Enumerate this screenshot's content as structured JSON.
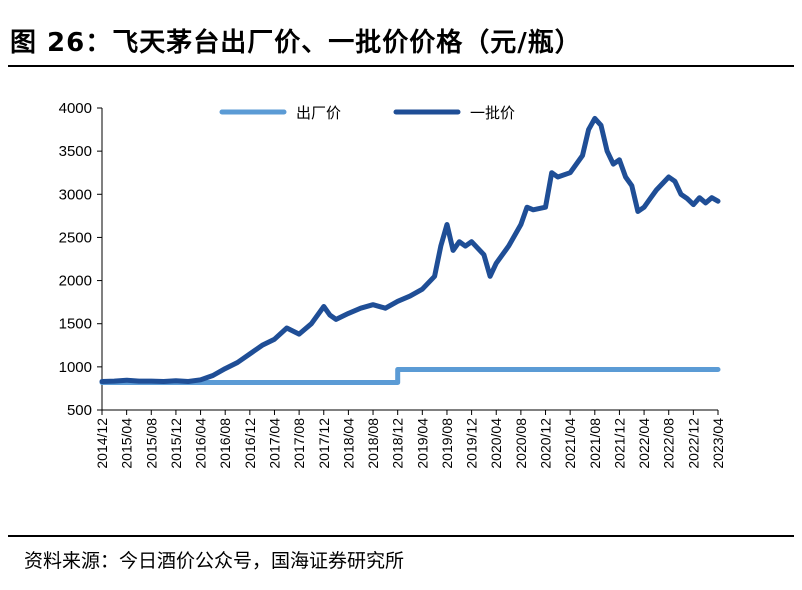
{
  "header": {
    "title": "图 26：飞天茅台出厂价、一批价价格（元/瓶）"
  },
  "footer": {
    "source": "资料来源：今日酒价公众号，国海证券研究所"
  },
  "chart_data": {
    "type": "line",
    "title": "",
    "xlabel": "",
    "ylabel": "",
    "ylim": [
      500,
      4000
    ],
    "yticks": [
      500,
      1000,
      1500,
      2000,
      2500,
      3000,
      3500,
      4000
    ],
    "x_tick_labels": [
      "2014/12",
      "2015/04",
      "2015/08",
      "2015/12",
      "2016/04",
      "2016/08",
      "2016/12",
      "2017/04",
      "2017/08",
      "2017/12",
      "2018/04",
      "2018/08",
      "2018/12",
      "2019/04",
      "2019/08",
      "2019/12",
      "2020/04",
      "2020/08",
      "2020/12",
      "2021/04",
      "2021/08",
      "2021/12",
      "2022/04",
      "2022/08",
      "2022/12",
      "2023/04"
    ],
    "legend_position": "top",
    "grid": false,
    "series": [
      {
        "name": "出厂价",
        "color": "#5b9bd5",
        "points": [
          [
            "2014/12",
            819
          ],
          [
            "2018/12",
            819
          ],
          [
            "2018/12",
            969
          ],
          [
            "2023/04",
            969
          ]
        ]
      },
      {
        "name": "一批价",
        "color": "#1f4e96",
        "points": [
          [
            "2014/12",
            830
          ],
          [
            "2015/02",
            835
          ],
          [
            "2015/04",
            845
          ],
          [
            "2015/06",
            835
          ],
          [
            "2015/08",
            835
          ],
          [
            "2015/10",
            830
          ],
          [
            "2015/12",
            840
          ],
          [
            "2016/02",
            830
          ],
          [
            "2016/04",
            850
          ],
          [
            "2016/06",
            900
          ],
          [
            "2016/08",
            980
          ],
          [
            "2016/10",
            1050
          ],
          [
            "2016/12",
            1150
          ],
          [
            "2017/02",
            1250
          ],
          [
            "2017/04",
            1320
          ],
          [
            "2017/06",
            1450
          ],
          [
            "2017/08",
            1380
          ],
          [
            "2017/10",
            1500
          ],
          [
            "2017/12",
            1700
          ],
          [
            "2018/01",
            1600
          ],
          [
            "2018/02",
            1550
          ],
          [
            "2018/04",
            1620
          ],
          [
            "2018/06",
            1680
          ],
          [
            "2018/08",
            1720
          ],
          [
            "2018/10",
            1680
          ],
          [
            "2018/12",
            1760
          ],
          [
            "2019/02",
            1820
          ],
          [
            "2019/04",
            1900
          ],
          [
            "2019/06",
            2050
          ],
          [
            "2019/07",
            2400
          ],
          [
            "2019/08",
            2650
          ],
          [
            "2019/09",
            2350
          ],
          [
            "2019/10",
            2450
          ],
          [
            "2019/11",
            2400
          ],
          [
            "2019/12",
            2450
          ],
          [
            "2020/02",
            2300
          ],
          [
            "2020/03",
            2050
          ],
          [
            "2020/04",
            2200
          ],
          [
            "2020/06",
            2400
          ],
          [
            "2020/08",
            2650
          ],
          [
            "2020/09",
            2850
          ],
          [
            "2020/10",
            2820
          ],
          [
            "2020/12",
            2850
          ],
          [
            "2021/01",
            3250
          ],
          [
            "2021/02",
            3200
          ],
          [
            "2021/04",
            3250
          ],
          [
            "2021/06",
            3450
          ],
          [
            "2021/07",
            3750
          ],
          [
            "2021/08",
            3880
          ],
          [
            "2021/09",
            3800
          ],
          [
            "2021/10",
            3500
          ],
          [
            "2021/11",
            3350
          ],
          [
            "2021/12",
            3400
          ],
          [
            "2022/01",
            3200
          ],
          [
            "2022/02",
            3100
          ],
          [
            "2022/03",
            2800
          ],
          [
            "2022/04",
            2850
          ],
          [
            "2022/05",
            2950
          ],
          [
            "2022/06",
            3050
          ],
          [
            "2022/08",
            3200
          ],
          [
            "2022/09",
            3150
          ],
          [
            "2022/10",
            3000
          ],
          [
            "2022/11",
            2950
          ],
          [
            "2022/12",
            2880
          ],
          [
            "2023/01",
            2960
          ],
          [
            "2023/02",
            2900
          ],
          [
            "2023/03",
            2960
          ],
          [
            "2023/04",
            2920
          ]
        ]
      }
    ]
  }
}
